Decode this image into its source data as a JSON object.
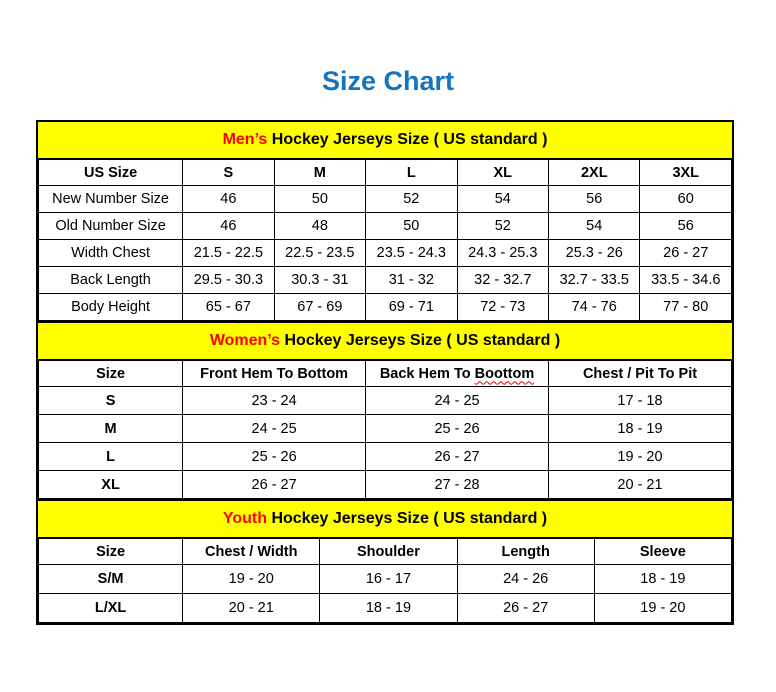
{
  "page": {
    "title": "Size Chart"
  },
  "colors": {
    "title_blue": "#1574BF",
    "accent_red": "#FF0000",
    "band_yellow": "#FFFF00",
    "border_black": "#000000"
  },
  "sections": {
    "mens": {
      "heading": {
        "highlight": "Men’s",
        "rest": " Hockey Jerseys Size ( US standard )"
      },
      "columns": [
        "US Size",
        "S",
        "M",
        "L",
        "XL",
        "2XL",
        "3XL"
      ],
      "rows": [
        {
          "label": "New Number Size",
          "values": [
            "46",
            "50",
            "52",
            "54",
            "56",
            "60"
          ]
        },
        {
          "label": "Old Number Size",
          "values": [
            "46",
            "48",
            "50",
            "52",
            "54",
            "56"
          ]
        },
        {
          "label": "Width Chest",
          "values": [
            "21.5 - 22.5",
            "22.5 - 23.5",
            "23.5 - 24.3",
            "24.3 - 25.3",
            "25.3 - 26",
            "26 - 27"
          ]
        },
        {
          "label": "Back Length",
          "values": [
            "29.5 - 30.3",
            "30.3 - 31",
            "31 - 32",
            "32 - 32.7",
            "32.7 - 33.5",
            "33.5 - 34.6"
          ]
        },
        {
          "label": "Body Height",
          "values": [
            "65 - 67",
            "67 - 69",
            "69 - 71",
            "72 - 73",
            "74 - 76",
            "77 - 80"
          ]
        }
      ]
    },
    "womens": {
      "heading": {
        "highlight": "Women’s",
        "rest": " Hockey Jerseys Size ( US standard )"
      },
      "columns": [
        "Size",
        "Front Hem To Bottom",
        {
          "prefix": "Back Hem To ",
          "misspelled": "Boottom"
        },
        "Chest / Pit To Pit"
      ],
      "rows": [
        {
          "label": "S",
          "values": [
            "23 - 24",
            "24 - 25",
            "17 - 18"
          ]
        },
        {
          "label": "M",
          "values": [
            "24 - 25",
            "25 - 26",
            "18 - 19"
          ]
        },
        {
          "label": "L",
          "values": [
            "25 - 26",
            "26 - 27",
            "19 - 20"
          ]
        },
        {
          "label": "XL",
          "values": [
            "26 - 27",
            "27 - 28",
            "20 - 21"
          ]
        }
      ]
    },
    "youth": {
      "heading": {
        "highlight": "Youth",
        "rest": " Hockey Jerseys Size ( US standard )"
      },
      "columns": [
        "Size",
        "Chest / Width",
        "Shoulder",
        "Length",
        "Sleeve"
      ],
      "rows": [
        {
          "label": "S/M",
          "values": [
            "19 - 20",
            "16 - 17",
            "24 - 26",
            "18 - 19"
          ]
        },
        {
          "label": "L/XL",
          "values": [
            "20 - 21",
            "18 - 19",
            "26 - 27",
            "19 - 20"
          ]
        }
      ]
    }
  }
}
